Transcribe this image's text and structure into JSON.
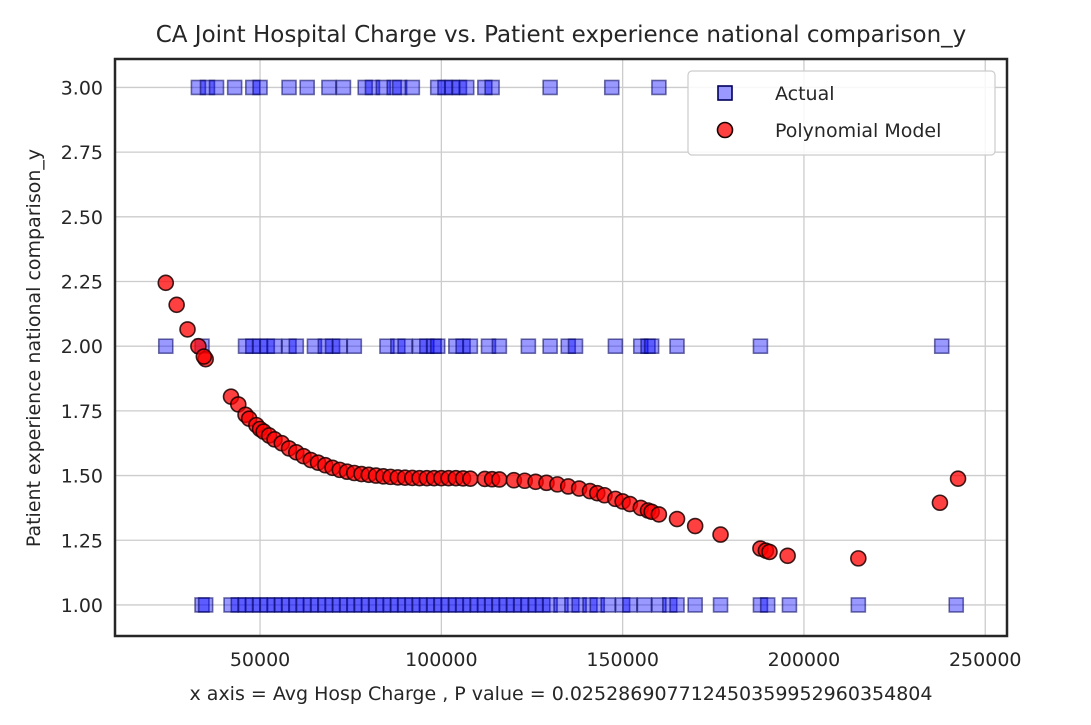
{
  "chart_data": {
    "type": "scatter",
    "title": "CA Joint Hospital Charge vs. Patient experience national comparison_y",
    "xlabel": "x axis = Avg Hosp Charge , P value = 0.025286907712450359952960354804",
    "ylabel": "Patient experience national comparison_y",
    "xlim": [
      10000,
      256000
    ],
    "ylim": [
      0.88,
      3.11
    ],
    "x_ticks": [
      50000,
      100000,
      150000,
      200000,
      250000
    ],
    "y_ticks": [
      1.0,
      1.25,
      1.5,
      1.75,
      2.0,
      2.25,
      2.5,
      2.75,
      3.0
    ],
    "x_tick_labels": [
      "50000",
      "100000",
      "150000",
      "200000",
      "250000"
    ],
    "y_tick_labels": [
      "1.00",
      "1.25",
      "1.50",
      "1.75",
      "2.00",
      "2.25",
      "2.50",
      "2.75",
      "3.00"
    ],
    "grid": true,
    "legend_position": "top-right",
    "series": [
      {
        "name": "Actual",
        "marker": "square",
        "color": "#0000ff",
        "edge_color": "#00005a",
        "opacity": 0.4,
        "points": [
          [
            33000,
            3.0
          ],
          [
            35500,
            3.0
          ],
          [
            38000,
            3.0
          ],
          [
            43000,
            3.0
          ],
          [
            48000,
            3.0
          ],
          [
            50000,
            3.0
          ],
          [
            58000,
            3.0
          ],
          [
            63000,
            3.0
          ],
          [
            69000,
            3.0
          ],
          [
            73000,
            3.0
          ],
          [
            79000,
            3.0
          ],
          [
            81000,
            3.0
          ],
          [
            84000,
            3.0
          ],
          [
            87000,
            3.0
          ],
          [
            88500,
            3.0
          ],
          [
            92000,
            3.0
          ],
          [
            99000,
            3.0
          ],
          [
            101000,
            3.0
          ],
          [
            103000,
            3.0
          ],
          [
            105000,
            3.0
          ],
          [
            107000,
            3.0
          ],
          [
            112000,
            3.0
          ],
          [
            114000,
            3.0
          ],
          [
            130000,
            3.0
          ],
          [
            147000,
            3.0
          ],
          [
            160000,
            3.0
          ],
          [
            24000,
            2.0
          ],
          [
            34000,
            2.0
          ],
          [
            46000,
            2.0
          ],
          [
            48000,
            2.0
          ],
          [
            50000,
            2.0
          ],
          [
            52000,
            2.0
          ],
          [
            54000,
            2.0
          ],
          [
            58000,
            2.0
          ],
          [
            60000,
            2.0
          ],
          [
            65000,
            2.0
          ],
          [
            68000,
            2.0
          ],
          [
            70000,
            2.0
          ],
          [
            72000,
            2.0
          ],
          [
            76000,
            2.0
          ],
          [
            85000,
            2.0
          ],
          [
            88000,
            2.0
          ],
          [
            90000,
            2.0
          ],
          [
            94000,
            2.0
          ],
          [
            96000,
            2.0
          ],
          [
            98000,
            2.0
          ],
          [
            99000,
            2.0
          ],
          [
            104000,
            2.0
          ],
          [
            106000,
            2.0
          ],
          [
            108000,
            2.0
          ],
          [
            113000,
            2.0
          ],
          [
            116000,
            2.0
          ],
          [
            124000,
            2.0
          ],
          [
            130000,
            2.0
          ],
          [
            135000,
            2.0
          ],
          [
            137000,
            2.0
          ],
          [
            148000,
            2.0
          ],
          [
            155000,
            2.0
          ],
          [
            157000,
            2.0
          ],
          [
            158000,
            2.0
          ],
          [
            165000,
            2.0
          ],
          [
            188000,
            2.0
          ],
          [
            238000,
            2.0
          ],
          [
            34000,
            1.0
          ],
          [
            35000,
            1.0
          ],
          [
            42000,
            1.0
          ],
          [
            44000,
            1.0
          ],
          [
            46000,
            1.0
          ],
          [
            48000,
            1.0
          ],
          [
            50000,
            1.0
          ],
          [
            52000,
            1.0
          ],
          [
            54000,
            1.0
          ],
          [
            56000,
            1.0
          ],
          [
            58000,
            1.0
          ],
          [
            60000,
            1.0
          ],
          [
            62000,
            1.0
          ],
          [
            64000,
            1.0
          ],
          [
            66000,
            1.0
          ],
          [
            68000,
            1.0
          ],
          [
            70000,
            1.0
          ],
          [
            72000,
            1.0
          ],
          [
            74000,
            1.0
          ],
          [
            76000,
            1.0
          ],
          [
            78000,
            1.0
          ],
          [
            80000,
            1.0
          ],
          [
            82000,
            1.0
          ],
          [
            84000,
            1.0
          ],
          [
            86000,
            1.0
          ],
          [
            88000,
            1.0
          ],
          [
            90000,
            1.0
          ],
          [
            92000,
            1.0
          ],
          [
            94000,
            1.0
          ],
          [
            96000,
            1.0
          ],
          [
            98000,
            1.0
          ],
          [
            100000,
            1.0
          ],
          [
            102000,
            1.0
          ],
          [
            104000,
            1.0
          ],
          [
            106000,
            1.0
          ],
          [
            108000,
            1.0
          ],
          [
            110000,
            1.0
          ],
          [
            112000,
            1.0
          ],
          [
            114000,
            1.0
          ],
          [
            116000,
            1.0
          ],
          [
            118000,
            1.0
          ],
          [
            120000,
            1.0
          ],
          [
            122000,
            1.0
          ],
          [
            124000,
            1.0
          ],
          [
            126000,
            1.0
          ],
          [
            128000,
            1.0
          ],
          [
            130000,
            1.0
          ],
          [
            133000,
            1.0
          ],
          [
            136000,
            1.0
          ],
          [
            138000,
            1.0
          ],
          [
            141000,
            1.0
          ],
          [
            143000,
            1.0
          ],
          [
            146000,
            1.0
          ],
          [
            150000,
            1.0
          ],
          [
            152000,
            1.0
          ],
          [
            156000,
            1.0
          ],
          [
            160000,
            1.0
          ],
          [
            163000,
            1.0
          ],
          [
            165000,
            1.0
          ],
          [
            170000,
            1.0
          ],
          [
            177000,
            1.0
          ],
          [
            188000,
            1.0
          ],
          [
            190000,
            1.0
          ],
          [
            196000,
            1.0
          ],
          [
            215000,
            1.0
          ],
          [
            242000,
            1.0
          ]
        ]
      },
      {
        "name": "Polynomial Model",
        "marker": "circle",
        "color": "#ff0000",
        "edge_color": "#1a0000",
        "opacity": 0.75,
        "points": [
          [
            24000,
            2.245
          ],
          [
            27000,
            2.16
          ],
          [
            30000,
            2.065
          ],
          [
            33000,
            2.0
          ],
          [
            35000,
            1.95
          ],
          [
            34500,
            1.96
          ],
          [
            42000,
            1.805
          ],
          [
            44000,
            1.775
          ],
          [
            46000,
            1.735
          ],
          [
            47000,
            1.72
          ],
          [
            49000,
            1.695
          ],
          [
            50000,
            1.68
          ],
          [
            51000,
            1.67
          ],
          [
            52500,
            1.655
          ],
          [
            54000,
            1.64
          ],
          [
            56000,
            1.625
          ],
          [
            58000,
            1.605
          ],
          [
            60000,
            1.59
          ],
          [
            62000,
            1.575
          ],
          [
            64000,
            1.56
          ],
          [
            66000,
            1.55
          ],
          [
            68000,
            1.54
          ],
          [
            70000,
            1.53
          ],
          [
            72000,
            1.522
          ],
          [
            74000,
            1.515
          ],
          [
            76000,
            1.51
          ],
          [
            78000,
            1.506
          ],
          [
            80000,
            1.503
          ],
          [
            82000,
            1.5
          ],
          [
            84000,
            1.497
          ],
          [
            86000,
            1.495
          ],
          [
            88000,
            1.493
          ],
          [
            90000,
            1.492
          ],
          [
            92000,
            1.491
          ],
          [
            94000,
            1.49
          ],
          [
            96000,
            1.49
          ],
          [
            98000,
            1.49
          ],
          [
            100000,
            1.49
          ],
          [
            102000,
            1.49
          ],
          [
            104000,
            1.49
          ],
          [
            106000,
            1.489
          ],
          [
            108000,
            1.488
          ],
          [
            112000,
            1.487
          ],
          [
            114000,
            1.486
          ],
          [
            116000,
            1.485
          ],
          [
            120000,
            1.482
          ],
          [
            123000,
            1.48
          ],
          [
            126000,
            1.476
          ],
          [
            129000,
            1.472
          ],
          [
            132000,
            1.466
          ],
          [
            135000,
            1.458
          ],
          [
            138000,
            1.45
          ],
          [
            141000,
            1.44
          ],
          [
            143000,
            1.432
          ],
          [
            145000,
            1.424
          ],
          [
            148000,
            1.41
          ],
          [
            150000,
            1.4
          ],
          [
            152000,
            1.39
          ],
          [
            155000,
            1.375
          ],
          [
            157000,
            1.365
          ],
          [
            158000,
            1.36
          ],
          [
            160000,
            1.35
          ],
          [
            165000,
            1.332
          ],
          [
            170000,
            1.305
          ],
          [
            177000,
            1.272
          ],
          [
            188000,
            1.218
          ],
          [
            189500,
            1.21
          ],
          [
            190500,
            1.205
          ],
          [
            195500,
            1.19
          ],
          [
            215000,
            1.18
          ],
          [
            237500,
            1.395
          ],
          [
            242500,
            1.488
          ]
        ]
      }
    ],
    "legend": [
      {
        "label": "Actual",
        "marker": "square"
      },
      {
        "label": "Polynomial Model",
        "marker": "circle"
      }
    ]
  }
}
